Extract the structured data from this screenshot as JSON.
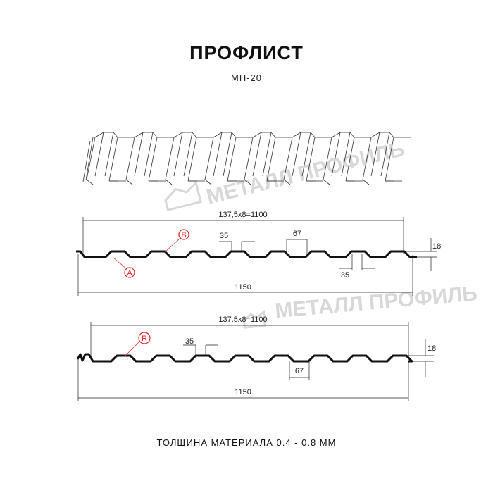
{
  "header": {
    "title": "ПРОФЛИСТ",
    "subtitle": "МП-20"
  },
  "watermark": {
    "text": "МЕТАЛЛ ПРОФИЛЬ",
    "color": "#d8d8d8"
  },
  "profile_a": {
    "width_ribs": "137,5x8=1100",
    "total": "1150",
    "top_width": "35",
    "bottom_width": "35",
    "rib_pitch_gap": "67",
    "height": "18",
    "mark_top": "B",
    "mark_bottom": "A"
  },
  "profile_r": {
    "width_ribs": "137.5x8=1100",
    "total": "1150",
    "top_width": "35",
    "rib_pitch_gap": "67",
    "height": "18",
    "mark": "R"
  },
  "footer": {
    "thickness": "ТОЛЩИНА МАТЕРИАЛА 0.4 - 0.8 ММ"
  },
  "colors": {
    "marker": "#e32222",
    "line": "#111111"
  }
}
